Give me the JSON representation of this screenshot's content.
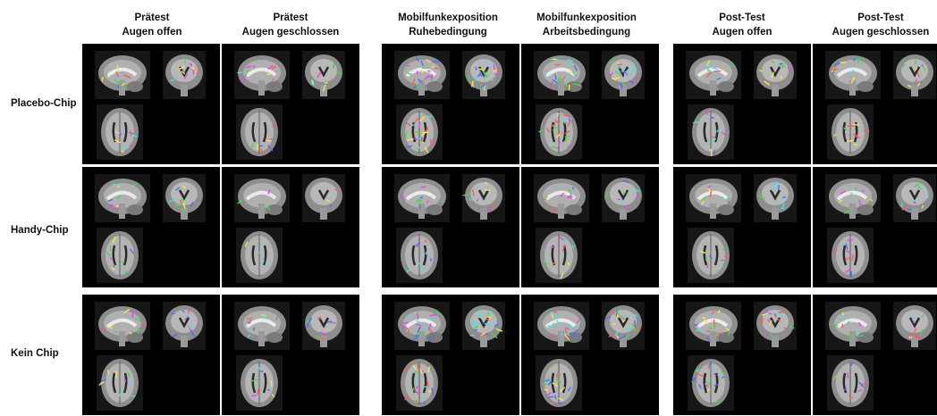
{
  "columns": [
    {
      "line1": "Prätest",
      "line2": "Augen offen"
    },
    {
      "line1": "Prätest",
      "line2": "Augen geschlossen"
    },
    {
      "line1": "Mobilfunkexposition",
      "line2": "Ruhebedingung"
    },
    {
      "line1": "Mobilfunkexposition",
      "line2": "Arbeitsbedingung"
    },
    {
      "line1": "Post-Test",
      "line2": "Augen offen"
    },
    {
      "line1": "Post-Test",
      "line2": "Augen geschlossen"
    }
  ],
  "rows": [
    "Placebo-Chip",
    "Handy-Chip",
    "Kein Chip"
  ],
  "density": [
    [
      1,
      1,
      3,
      3,
      1,
      1
    ],
    [
      1,
      0,
      1,
      1,
      1,
      1
    ],
    [
      1,
      1,
      3,
      3,
      2,
      1
    ]
  ],
  "dot_colors": [
    "#4ad84a",
    "#ffe34a",
    "#e04ae0",
    "#4a6cff",
    "#4ae0e0",
    "#ff5a5a"
  ]
}
